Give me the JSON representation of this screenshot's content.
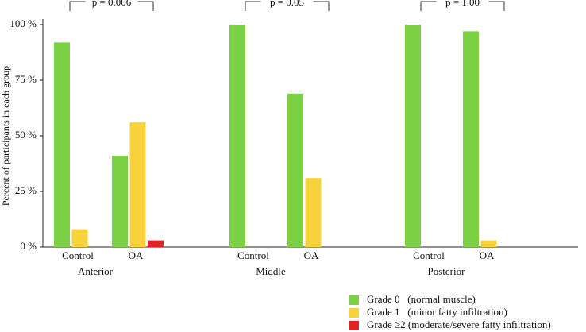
{
  "chart_data": {
    "type": "bar",
    "y_label": "Percent of participants in each group",
    "groups": [
      "Anterior",
      "Middle",
      "Posterior"
    ],
    "categories": [
      "Control",
      "OA",
      "Control",
      "OA",
      "Control",
      "OA"
    ],
    "annotations": [
      "p = 0.006",
      "p = 0.05",
      "p = 1.00"
    ],
    "series": [
      {
        "name": "Grade 0   (normal muscle)",
        "color": "#7cd043",
        "values": [
          92,
          41,
          100,
          69,
          100,
          97
        ]
      },
      {
        "name": "Grade 1   (minor fatty infiltration)",
        "color": "#f7d23a",
        "values": [
          8,
          56,
          0,
          31,
          0,
          3
        ]
      },
      {
        "name": "Grade ≥2 (moderate/severe fatty infiltration)",
        "color": "#e02424",
        "values": [
          0,
          3,
          0,
          0,
          0,
          0
        ]
      }
    ],
    "ylim": [
      0,
      100
    ],
    "yticks": [
      {
        "value": 0,
        "label": "0 %"
      },
      {
        "value": 25,
        "label": "25 %"
      },
      {
        "value": 50,
        "label": "50 %"
      },
      {
        "value": 75,
        "label": "75 %"
      },
      {
        "value": 100,
        "label": "100 %"
      }
    ],
    "legend": "bottom-right"
  }
}
